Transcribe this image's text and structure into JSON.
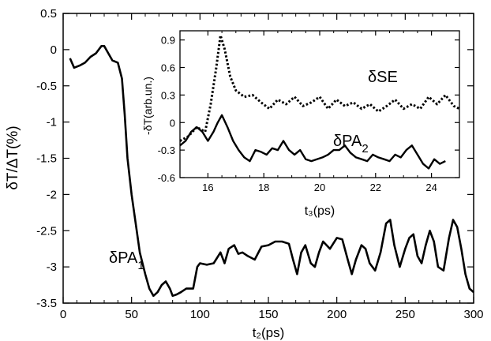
{
  "chart_data": [
    {
      "type": "line",
      "xlabel": "t₂(ps)",
      "ylabel": "δT/ΔT(%)",
      "xlim": [
        0,
        300
      ],
      "ylim": [
        -3.5,
        0.5
      ],
      "x_ticks": [
        "0",
        "50",
        "100",
        "150",
        "200",
        "250",
        "300"
      ],
      "y_ticks": [
        "0.5",
        "0",
        "-0.5",
        "-1",
        "-1.5",
        "-2",
        "-2.5",
        "-3",
        "-3.5"
      ],
      "x_tick_values": [
        0,
        50,
        100,
        150,
        200,
        250,
        300
      ],
      "y_tick_values": [
        0.5,
        0,
        -0.5,
        -1,
        -1.5,
        -2,
        -2.5,
        -3,
        -3.5
      ],
      "annotation": {
        "main": "δPA",
        "sub": "1"
      },
      "series": [
        {
          "style": "solid",
          "x": [
            5,
            8,
            12,
            16,
            20,
            24,
            28,
            30,
            33,
            36,
            40,
            43,
            45,
            47,
            50,
            53,
            56,
            60,
            63,
            66,
            69,
            72,
            75,
            78,
            80,
            83,
            86,
            90,
            95,
            98,
            100,
            105,
            110,
            115,
            118,
            121,
            125,
            128,
            131,
            135,
            140,
            145,
            150,
            155,
            160,
            165,
            168,
            171,
            174,
            177,
            181,
            184,
            187,
            190,
            195,
            200,
            204,
            208,
            211,
            214,
            218,
            221,
            224,
            228,
            232,
            236,
            239,
            242,
            246,
            250,
            253,
            256,
            259,
            262,
            265,
            268,
            271,
            274,
            278,
            282,
            285,
            288,
            291,
            294,
            297,
            300
          ],
          "y": [
            -0.12,
            -0.25,
            -0.22,
            -0.18,
            -0.1,
            -0.05,
            0.05,
            0.05,
            -0.05,
            -0.15,
            -0.18,
            -0.4,
            -0.9,
            -1.5,
            -2.0,
            -2.4,
            -2.8,
            -3.1,
            -3.3,
            -3.4,
            -3.35,
            -3.25,
            -3.2,
            -3.3,
            -3.4,
            -3.38,
            -3.35,
            -3.3,
            -3.3,
            -3.0,
            -2.95,
            -2.97,
            -2.95,
            -2.8,
            -2.95,
            -2.75,
            -2.7,
            -2.82,
            -2.8,
            -2.85,
            -2.9,
            -2.72,
            -2.7,
            -2.65,
            -2.65,
            -2.68,
            -2.9,
            -3.1,
            -2.8,
            -2.7,
            -2.95,
            -3.0,
            -2.8,
            -2.65,
            -2.75,
            -2.6,
            -2.62,
            -2.9,
            -3.1,
            -2.9,
            -2.7,
            -2.75,
            -2.95,
            -3.05,
            -2.8,
            -2.4,
            -2.35,
            -2.7,
            -3.0,
            -2.75,
            -2.6,
            -2.55,
            -2.85,
            -2.95,
            -2.7,
            -2.5,
            -2.65,
            -3.0,
            -3.05,
            -2.6,
            -2.35,
            -2.45,
            -2.75,
            -3.1,
            -3.3,
            -3.35
          ]
        }
      ]
    },
    {
      "type": "line",
      "xlabel": "t₃(ps)",
      "ylabel": "-δT(arb.un.)",
      "xlim": [
        15,
        25
      ],
      "ylim": [
        -0.6,
        1.0
      ],
      "x_ticks": [
        "16",
        "18",
        "20",
        "22",
        "24"
      ],
      "y_ticks": [
        "0.9",
        "0.6",
        "0.3",
        "0",
        "-0.3",
        "-0.6"
      ],
      "x_tick_values": [
        16,
        18,
        20,
        22,
        24
      ],
      "y_tick_values": [
        0.9,
        0.6,
        0.3,
        0,
        -0.3,
        -0.6
      ],
      "annotations": [
        {
          "main": "δSE",
          "sub": ""
        },
        {
          "main": "δPA",
          "sub": "2"
        }
      ],
      "series": [
        {
          "style": "dotted",
          "x": [
            15.0,
            15.3,
            15.6,
            15.9,
            16.1,
            16.3,
            16.45,
            16.6,
            16.8,
            17.0,
            17.3,
            17.6,
            17.9,
            18.2,
            18.5,
            18.8,
            19.1,
            19.4,
            19.7,
            20.0,
            20.3,
            20.6,
            20.9,
            21.2,
            21.5,
            21.8,
            22.1,
            22.4,
            22.7,
            23.0,
            23.3,
            23.6,
            23.9,
            24.2,
            24.5,
            24.8,
            25.0
          ],
          "y": [
            -0.2,
            -0.15,
            -0.05,
            -0.1,
            0.2,
            0.6,
            0.95,
            0.8,
            0.5,
            0.35,
            0.28,
            0.3,
            0.22,
            0.15,
            0.25,
            0.2,
            0.28,
            0.18,
            0.22,
            0.28,
            0.15,
            0.25,
            0.18,
            0.22,
            0.15,
            0.2,
            0.12,
            0.18,
            0.25,
            0.15,
            0.2,
            0.15,
            0.28,
            0.2,
            0.3,
            0.18,
            0.15
          ]
        },
        {
          "style": "solid",
          "x": [
            15.0,
            15.2,
            15.4,
            15.6,
            15.8,
            16.0,
            16.2,
            16.35,
            16.5,
            16.7,
            16.9,
            17.1,
            17.3,
            17.5,
            17.7,
            17.9,
            18.1,
            18.3,
            18.5,
            18.7,
            18.9,
            19.1,
            19.3,
            19.5,
            19.7,
            19.9,
            20.1,
            20.3,
            20.5,
            20.7,
            20.9,
            21.1,
            21.3,
            21.5,
            21.7,
            21.9,
            22.1,
            22.3,
            22.5,
            22.7,
            22.9,
            23.1,
            23.3,
            23.5,
            23.7,
            23.9,
            24.1,
            24.3,
            24.5
          ],
          "y": [
            -0.25,
            -0.2,
            -0.1,
            -0.05,
            -0.1,
            -0.2,
            -0.1,
            0.0,
            0.08,
            -0.05,
            -0.2,
            -0.3,
            -0.38,
            -0.42,
            -0.3,
            -0.32,
            -0.35,
            -0.28,
            -0.3,
            -0.2,
            -0.3,
            -0.35,
            -0.3,
            -0.4,
            -0.42,
            -0.4,
            -0.38,
            -0.35,
            -0.3,
            -0.3,
            -0.25,
            -0.33,
            -0.38,
            -0.4,
            -0.42,
            -0.35,
            -0.38,
            -0.4,
            -0.42,
            -0.35,
            -0.38,
            -0.3,
            -0.25,
            -0.35,
            -0.45,
            -0.5,
            -0.4,
            -0.45,
            -0.42
          ]
        }
      ]
    }
  ]
}
